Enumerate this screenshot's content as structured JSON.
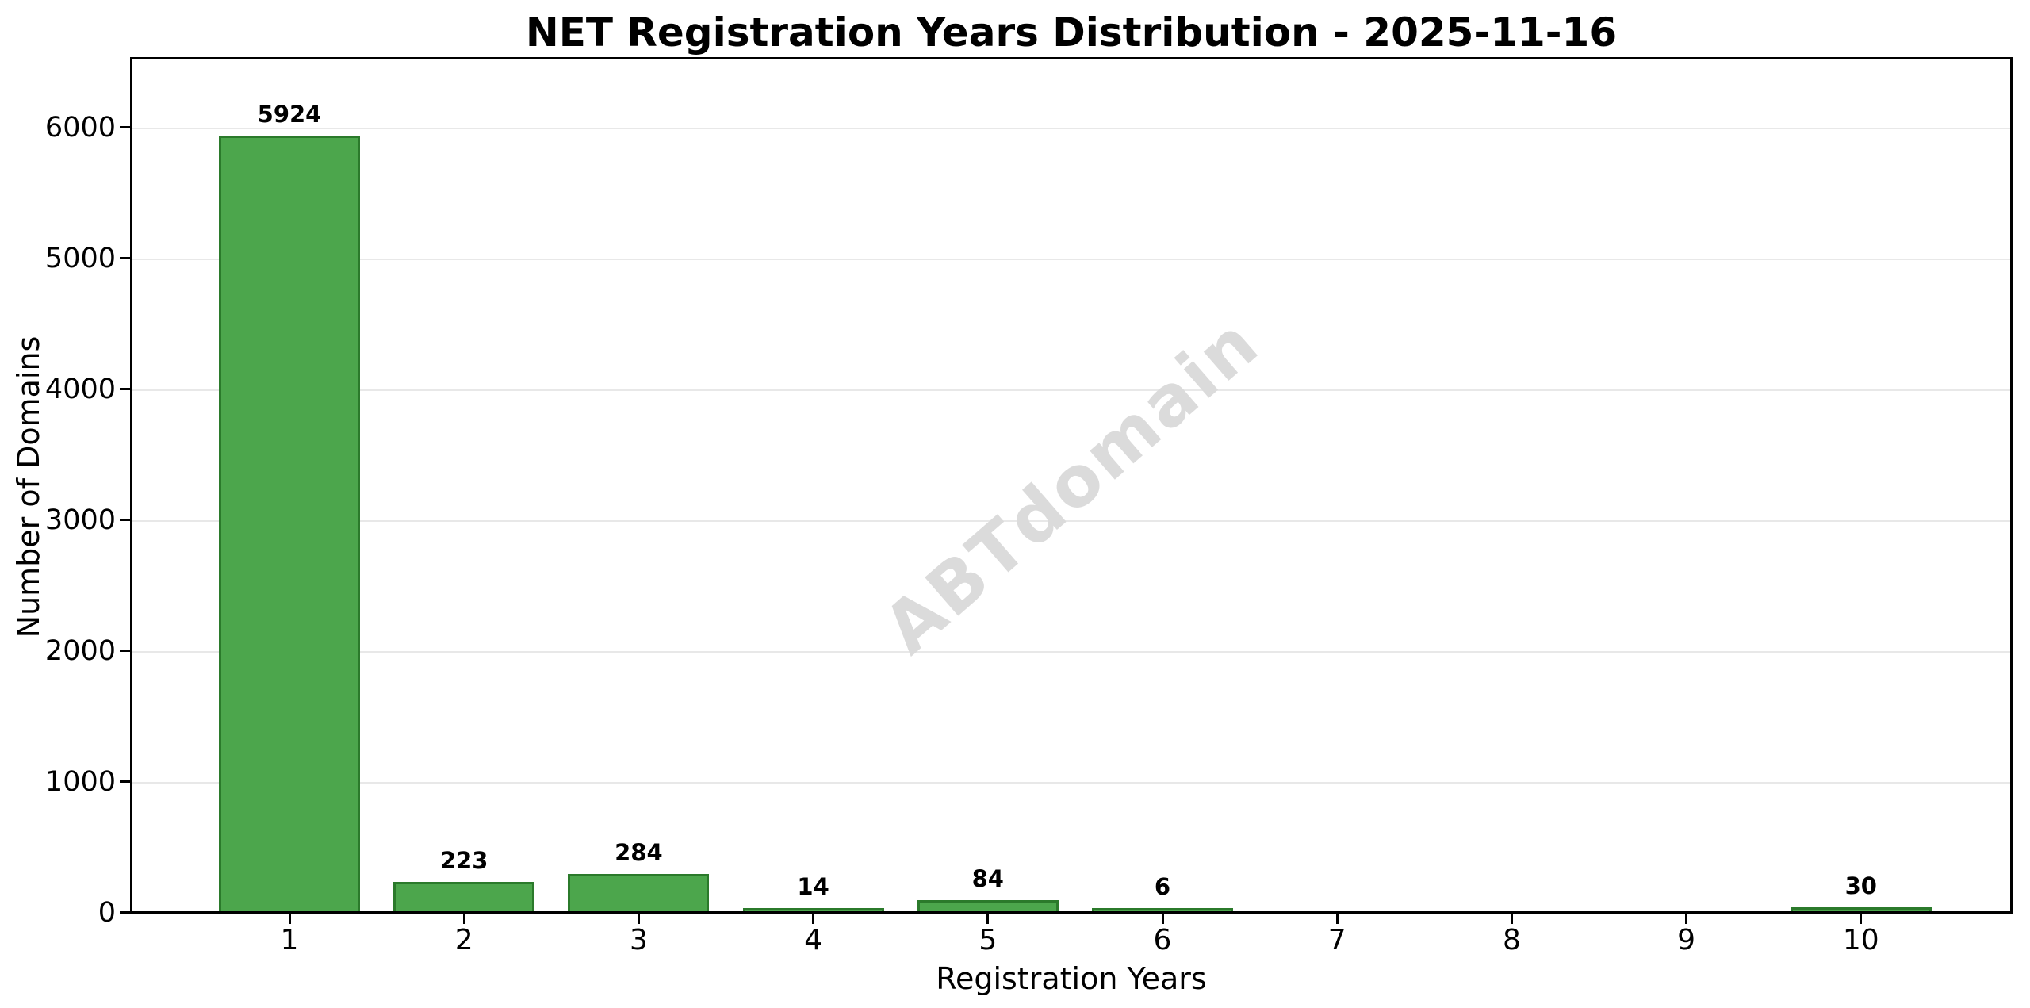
{
  "chart_data": {
    "type": "bar",
    "title": "NET Registration Years Distribution - 2025-11-16",
    "xlabel": "Registration Years",
    "ylabel": "Number of Domains",
    "categories": [
      "1",
      "2",
      "3",
      "4",
      "5",
      "6",
      "7",
      "8",
      "9",
      "10"
    ],
    "values": [
      5924,
      223,
      284,
      14,
      84,
      6,
      0,
      0,
      0,
      30
    ],
    "bar_labels": [
      "5924",
      "223",
      "284",
      "14",
      "84",
      "6",
      "",
      "",
      "",
      "30"
    ],
    "y_ticks": [
      0,
      1000,
      2000,
      3000,
      4000,
      5000,
      6000
    ],
    "ylim": [
      0,
      6545
    ],
    "grid": "horizontal-only",
    "legend": "none",
    "watermark": "ABTdomain",
    "colors": {
      "bar_fill": "#4CA64C",
      "bar_edge": "#2B7A2B",
      "watermark": "#DBDBDB",
      "gridline": "#E8E8E8",
      "axis": "#000000",
      "background": "#FFFFFF"
    }
  }
}
